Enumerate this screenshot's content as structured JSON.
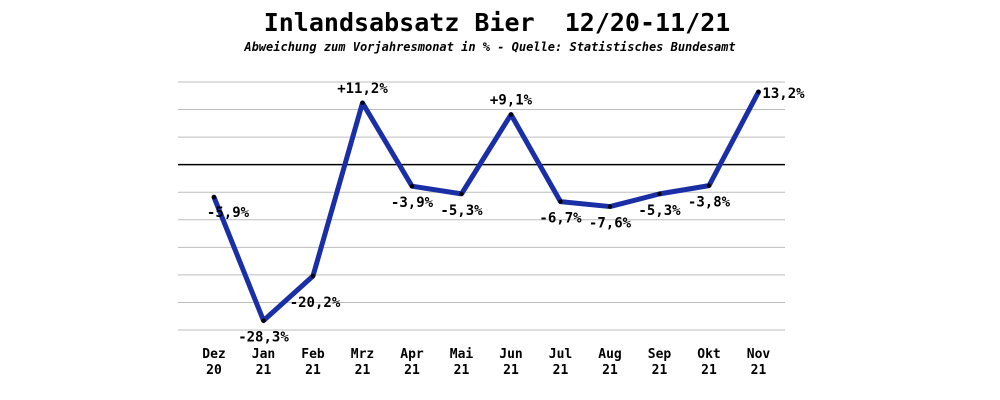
{
  "chart_data": {
    "type": "line",
    "title": "Inlandsabsatz Bier  12/20-11/21",
    "subtitle": "Abweichung zum Vorjahresmonat in % - Quelle: Statistisches Bundesamt",
    "categories": [
      [
        "Dez",
        "20"
      ],
      [
        "Jan",
        "21"
      ],
      [
        "Feb",
        "21"
      ],
      [
        "Mrz",
        "21"
      ],
      [
        "Apr",
        "21"
      ],
      [
        "Mai",
        "21"
      ],
      [
        "Jun",
        "21"
      ],
      [
        "Jul",
        "21"
      ],
      [
        "Aug",
        "21"
      ],
      [
        "Sep",
        "21"
      ],
      [
        "Okt",
        "21"
      ],
      [
        "Nov",
        "21"
      ]
    ],
    "values": [
      -5.9,
      -28.3,
      -20.2,
      11.2,
      -3.9,
      -5.3,
      9.1,
      -6.7,
      -7.6,
      -5.3,
      -3.8,
      13.2
    ],
    "data_labels": [
      "-5,9%",
      "-28,3%",
      "-20,2%",
      "+11,2%",
      "-3,9%",
      "-5,3%",
      "+9,1%",
      "-6,7%",
      "-7,6%",
      "-5,3%",
      "-3,8%",
      "13,2%"
    ],
    "ylim": [
      -30,
      15
    ],
    "grid": true,
    "line_color": "#1a2fa6",
    "zero_line_color": "#000000",
    "grid_color": "#bdbdbd"
  }
}
